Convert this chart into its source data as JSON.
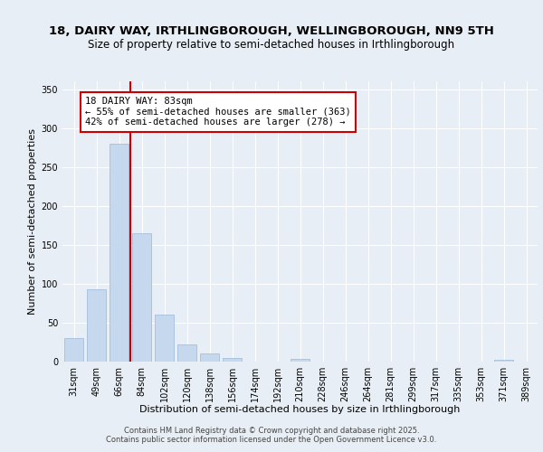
{
  "title1": "18, DAIRY WAY, IRTHLINGBOROUGH, WELLINGBOROUGH, NN9 5TH",
  "title2": "Size of property relative to semi-detached houses in Irthlingborough",
  "xlabel": "Distribution of semi-detached houses by size in Irthlingborough",
  "ylabel": "Number of semi-detached properties",
  "categories": [
    "31sqm",
    "49sqm",
    "66sqm",
    "84sqm",
    "102sqm",
    "120sqm",
    "138sqm",
    "156sqm",
    "174sqm",
    "192sqm",
    "210sqm",
    "228sqm",
    "246sqm",
    "264sqm",
    "281sqm",
    "299sqm",
    "317sqm",
    "335sqm",
    "353sqm",
    "371sqm",
    "389sqm"
  ],
  "values": [
    30,
    93,
    280,
    165,
    60,
    22,
    10,
    5,
    0,
    0,
    3,
    0,
    0,
    0,
    0,
    0,
    0,
    0,
    0,
    2,
    0
  ],
  "bar_color": "#c5d8ed",
  "bar_edge_color": "#9ab8d8",
  "vline_color": "#cc0000",
  "vline_x_index": 2.5,
  "annotation_title": "18 DAIRY WAY: 83sqm",
  "annotation_line1": "← 55% of semi-detached houses are smaller (363)",
  "annotation_line2": "42% of semi-detached houses are larger (278) →",
  "annotation_box_facecolor": "#ffffff",
  "annotation_box_edgecolor": "#cc0000",
  "ylim": [
    0,
    360
  ],
  "yticks": [
    0,
    50,
    100,
    150,
    200,
    250,
    300,
    350
  ],
  "background_color": "#e8eef5",
  "grid_color": "#ffffff",
  "footer1": "Contains HM Land Registry data © Crown copyright and database right 2025.",
  "footer2": "Contains public sector information licensed under the Open Government Licence v3.0.",
  "title1_fontsize": 9.5,
  "title2_fontsize": 8.5,
  "xlabel_fontsize": 8,
  "ylabel_fontsize": 8,
  "tick_fontsize": 7,
  "annotation_fontsize": 7.5,
  "footer_fontsize": 6
}
